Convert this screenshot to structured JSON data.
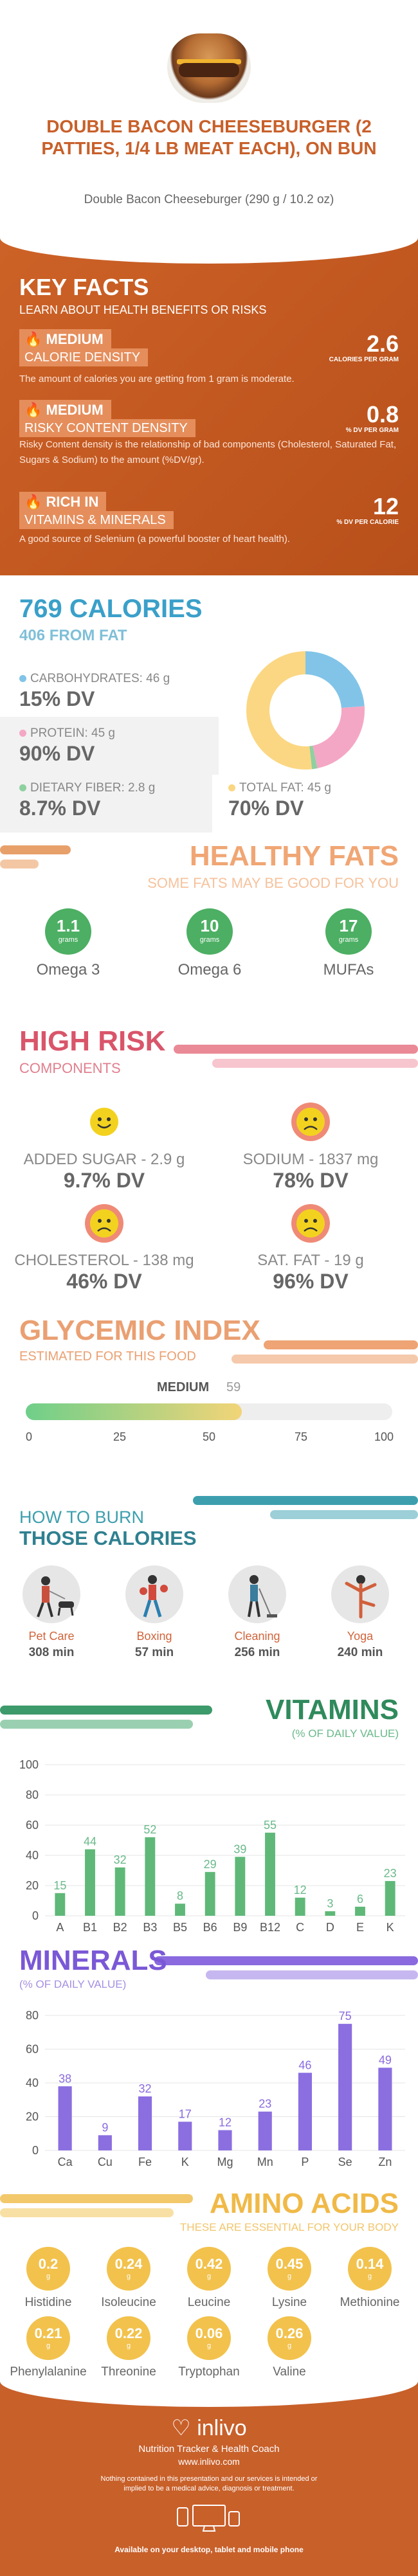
{
  "header": {
    "title": "DOUBLE BACON CHEESEBURGER (2 PATTIES, 1/4 LB MEAT EACH), ON BUN",
    "subtitle": "Double Bacon Cheeseburger (290 g / 10.2 oz)"
  },
  "key_facts": {
    "title": "KEY FACTS",
    "subtitle": "LEARN ABOUT HEALTH BENEFITS OR RISKS",
    "items": [
      {
        "icon": "flame-icon",
        "level": "MEDIUM",
        "label": "CALORIE DENSITY",
        "value": "2.6",
        "unit": "CALORIES PER GRAM",
        "desc": "The amount of calories you are getting from 1 gram is moderate."
      },
      {
        "icon": "flame-icon",
        "level": "MEDIUM",
        "label": "RISKY CONTENT DENSITY",
        "value": "0.8",
        "unit": "% DV PER GRAM",
        "desc": "Risky Content density is the relationship of bad components (Cholesterol, Saturated Fat, Sugars & Sodium) to the amount (%DV/gr)."
      },
      {
        "icon": "flame-icon",
        "level": "RICH IN",
        "label": "VITAMINS & MINERALS",
        "value": "12",
        "unit": "% DV PER CALORIE",
        "desc": "A good source of Selenium (a powerful booster of heart health)."
      }
    ]
  },
  "calories": {
    "title": "769 CALORIES",
    "subtitle": "406 FROM FAT",
    "carbs": {
      "label": "CARBOHYDRATES: 46 g",
      "dv": "15% DV",
      "color": "#82c4e8"
    },
    "protein": {
      "label": "PROTEIN: 45 g",
      "dv": "90% DV",
      "color": "#f4a7c4"
    },
    "fiber": {
      "label": "DIETARY FIBER: 2.8 g",
      "dv": "8.7% DV",
      "color": "#8fd0a0"
    },
    "fat": {
      "label": "TOTAL FAT: 45 g",
      "dv": "70% DV",
      "color": "#fbd783"
    },
    "donut": [
      {
        "name": "carbs",
        "value": 24,
        "color": "#82c4e8"
      },
      {
        "name": "protein",
        "value": 23,
        "color": "#f4a7c4"
      },
      {
        "name": "fiber",
        "value": 1.5,
        "color": "#8fd0a0"
      },
      {
        "name": "fat",
        "value": 52,
        "color": "#fbd783"
      }
    ]
  },
  "healthy_fats": {
    "title": "HEALTHY FATS",
    "subtitle": "SOME FATS MAY BE GOOD FOR YOU",
    "items": [
      {
        "value": "1.1",
        "unit": "grams",
        "label": "Omega 3"
      },
      {
        "value": "10",
        "unit": "grams",
        "label": "Omega 6"
      },
      {
        "value": "17",
        "unit": "grams",
        "label": "MUFAs"
      }
    ]
  },
  "high_risk": {
    "title": "HIGH RISK",
    "subtitle": "COMPONENTS",
    "items": [
      {
        "label": "ADDED SUGAR - 2.9 g",
        "dv": "9.7% DV",
        "face": "happy-face-icon"
      },
      {
        "label": "SODIUM - 1837 mg",
        "dv": "78% DV",
        "face": "sad-face-icon"
      },
      {
        "label": "CHOLESTEROL - 138 mg",
        "dv": "46% DV",
        "face": "sad-face-icon"
      },
      {
        "label": "SAT. FAT - 19 g",
        "dv": "96% DV",
        "face": "sad-face-icon"
      }
    ]
  },
  "glycemic": {
    "title": "GLYCEMIC INDEX",
    "subtitle": "ESTIMATED FOR THIS FOOD",
    "level": "MEDIUM",
    "value": "59",
    "value_num": 59,
    "ticks": [
      "0",
      "25",
      "50",
      "75",
      "100"
    ]
  },
  "burn": {
    "title1": "HOW TO BURN",
    "title2": "THOSE CALORIES",
    "items": [
      {
        "label": "Pet Care",
        "value": "308 min",
        "icon": "pet-care-icon"
      },
      {
        "label": "Boxing",
        "value": "57 min",
        "icon": "boxing-icon"
      },
      {
        "label": "Cleaning",
        "value": "256 min",
        "icon": "cleaning-icon"
      },
      {
        "label": "Yoga",
        "value": "240 min",
        "icon": "yoga-icon"
      }
    ]
  },
  "vitamins": {
    "title": "VITAMINS",
    "subtitle": "(% OF DAILY VALUE)",
    "chart_data": {
      "type": "bar",
      "categories": [
        "A",
        "B1",
        "B2",
        "B3",
        "B5",
        "B6",
        "B9",
        "B12",
        "C",
        "D",
        "E",
        "K"
      ],
      "values": [
        15,
        44,
        32,
        52,
        8,
        29,
        39,
        55,
        12,
        3,
        6,
        23
      ],
      "ylim": [
        0,
        100
      ],
      "yticks": [
        "0",
        "20",
        "40",
        "60",
        "80",
        "100"
      ],
      "color": "#5fb878"
    }
  },
  "minerals": {
    "title": "MINERALS",
    "subtitle": "(% OF DAILY VALUE)",
    "chart_data": {
      "type": "bar",
      "categories": [
        "Ca",
        "Cu",
        "Fe",
        "K",
        "Mg",
        "Mn",
        "P",
        "Se",
        "Zn"
      ],
      "values": [
        38,
        9,
        32,
        17,
        12,
        23,
        46,
        75,
        49
      ],
      "ylim": [
        0,
        80
      ],
      "yticks": [
        "0",
        "20",
        "40",
        "60",
        "80"
      ],
      "color": "#8b6ee0"
    }
  },
  "amino": {
    "title": "AMINO ACIDS",
    "subtitle": "THESE ARE ESSENTIAL FOR YOUR BODY",
    "unit": "g",
    "items": [
      {
        "value": "0.2",
        "label": "Histidine"
      },
      {
        "value": "0.24",
        "label": "Isoleucine"
      },
      {
        "value": "0.42",
        "label": "Leucine"
      },
      {
        "value": "0.45",
        "label": "Lysine"
      },
      {
        "value": "0.14",
        "label": "Methionine"
      },
      {
        "value": "0.21",
        "label": "Phenylalanine"
      },
      {
        "value": "0.22",
        "label": "Threonine"
      },
      {
        "value": "0.06",
        "label": "Tryptophan"
      },
      {
        "value": "0.26",
        "label": "Valine"
      }
    ]
  },
  "footer": {
    "brand": "inlivo",
    "tagline": "Nutrition Tracker & Health Coach",
    "url": "www.inlivo.com",
    "disclaimer": "Nothing contained in this presentation and our services is intended or implied to be a medical advice, diagnosis or treatment.",
    "available": "Available on your desktop, tablet and mobile phone"
  }
}
